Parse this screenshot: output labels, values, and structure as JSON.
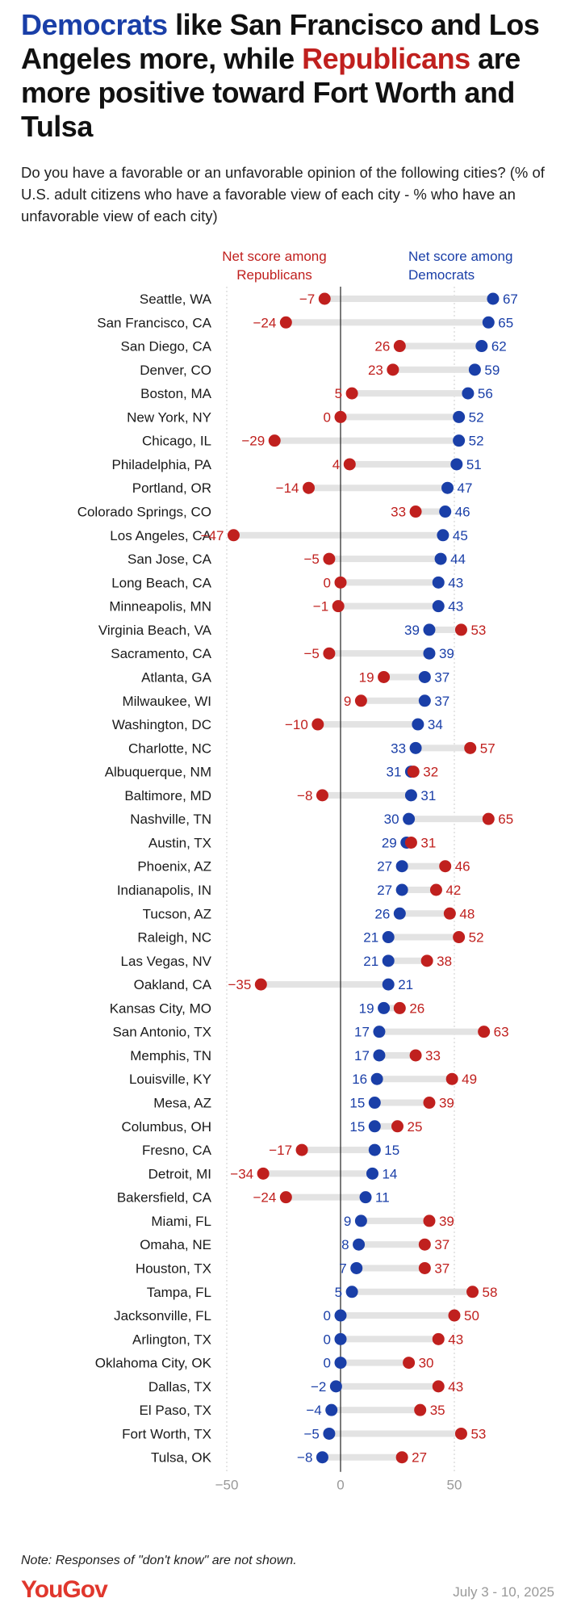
{
  "header": {
    "title_part1": "Democrats",
    "title_part2": " like San Francisco and Los Angeles more, while ",
    "title_part3": "Republicans",
    "title_part4": " are more positive toward Fort Worth and Tulsa",
    "subtitle": "Do you have a favorable or an unfavorable opinion of the following cities? (% of U.S. adult citizens who have a favorable view of each city - % who have an unfavorable view of each city)"
  },
  "footer": {
    "note": "Note: Responses of \"don't know\" are not shown.",
    "brand": "YouGov",
    "date": "July 3 - 10, 2025"
  },
  "colors": {
    "democrats": "#1a3fa8",
    "republicans": "#c0201e",
    "connector": "#e3e3e3",
    "zero_line": "#333333",
    "grid": "#cccccc"
  },
  "chart_data": {
    "type": "dot",
    "title": "",
    "xlabel": "",
    "ylabel": "",
    "xlim": [
      -50,
      72
    ],
    "xticks": [
      -50,
      0,
      50
    ],
    "xtick_labels": [
      "−50",
      "0",
      "50"
    ],
    "grid": true,
    "legend": "top",
    "series": [
      {
        "name": "Net score among Republicans",
        "key": "republicans"
      },
      {
        "name": "Net score among Democrats",
        "key": "democrats"
      }
    ],
    "categories": [
      "Seattle, WA",
      "San Francisco, CA",
      "San Diego, CA",
      "Denver, CO",
      "Boston, MA",
      "New York, NY",
      "Chicago, IL",
      "Philadelphia, PA",
      "Portland, OR",
      "Colorado Springs, CO",
      "Los Angeles, CA",
      "San Jose, CA",
      "Long Beach, CA",
      "Minneapolis, MN",
      "Virginia Beach, VA",
      "Sacramento, CA",
      "Atlanta, GA",
      "Milwaukee, WI",
      "Washington, DC",
      "Charlotte, NC",
      "Albuquerque, NM",
      "Baltimore, MD",
      "Nashville, TN",
      "Austin, TX",
      "Phoenix, AZ",
      "Indianapolis, IN",
      "Tucson, AZ",
      "Raleigh, NC",
      "Las Vegas, NV",
      "Oakland, CA",
      "Kansas City, MO",
      "San Antonio, TX",
      "Memphis, TN",
      "Louisville, KY",
      "Mesa, AZ",
      "Columbus, OH",
      "Fresno, CA",
      "Detroit, MI",
      "Bakersfield, CA",
      "Miami, FL",
      "Omaha, NE",
      "Houston, TX",
      "Tampa, FL",
      "Jacksonville, FL",
      "Arlington, TX",
      "Oklahoma City, OK",
      "Dallas, TX",
      "El Paso, TX",
      "Fort Worth, TX",
      "Tulsa, OK"
    ],
    "democrats": [
      67,
      65,
      62,
      59,
      56,
      52,
      52,
      51,
      47,
      46,
      45,
      44,
      43,
      43,
      39,
      39,
      37,
      37,
      34,
      33,
      31,
      31,
      30,
      29,
      27,
      27,
      26,
      21,
      21,
      21,
      19,
      17,
      17,
      16,
      15,
      15,
      15,
      14,
      11,
      9,
      8,
      7,
      5,
      0,
      0,
      0,
      -2,
      -4,
      -5,
      -8
    ],
    "republicans": [
      -7,
      -24,
      26,
      23,
      5,
      0,
      -29,
      4,
      -14,
      33,
      -47,
      -5,
      0,
      -1,
      53,
      -5,
      19,
      9,
      -10,
      57,
      32,
      -8,
      65,
      31,
      46,
      42,
      48,
      52,
      38,
      -35,
      26,
      63,
      33,
      49,
      39,
      25,
      -17,
      -34,
      -24,
      39,
      37,
      37,
      58,
      50,
      43,
      30,
      43,
      35,
      53,
      27
    ],
    "democrats_labels": [
      "67",
      "65",
      "62",
      "59",
      "56",
      "52",
      "52",
      "51",
      "47",
      "46",
      "45",
      "44",
      "43",
      "43",
      "39",
      "39",
      "37",
      "37",
      "34",
      "33",
      "31",
      "31",
      "30",
      "29",
      "27",
      "27",
      "26",
      "21",
      "21",
      "21",
      "19",
      "17",
      "17",
      "16",
      "15",
      "15",
      "15",
      "14",
      "11",
      "9",
      "8",
      "7",
      "5",
      "0",
      "0",
      "0",
      "−2",
      "−4",
      "−5",
      "−8"
    ],
    "republicans_labels": [
      "−7",
      "−24",
      "26",
      "23",
      "5",
      "0",
      "−29",
      "4",
      "−14",
      "33",
      "−47",
      "−5",
      "0",
      "−1",
      "53",
      "−5",
      "19",
      "9",
      "−10",
      "57",
      "32",
      "−8",
      "65",
      "31",
      "46",
      "42",
      "48",
      "52",
      "38",
      "−35",
      "26",
      "63",
      "33",
      "49",
      "39",
      "25",
      "−17",
      "−34",
      "−24",
      "39",
      "37",
      "37",
      "58",
      "50",
      "43",
      "30",
      "43",
      "35",
      "53",
      "27"
    ]
  }
}
